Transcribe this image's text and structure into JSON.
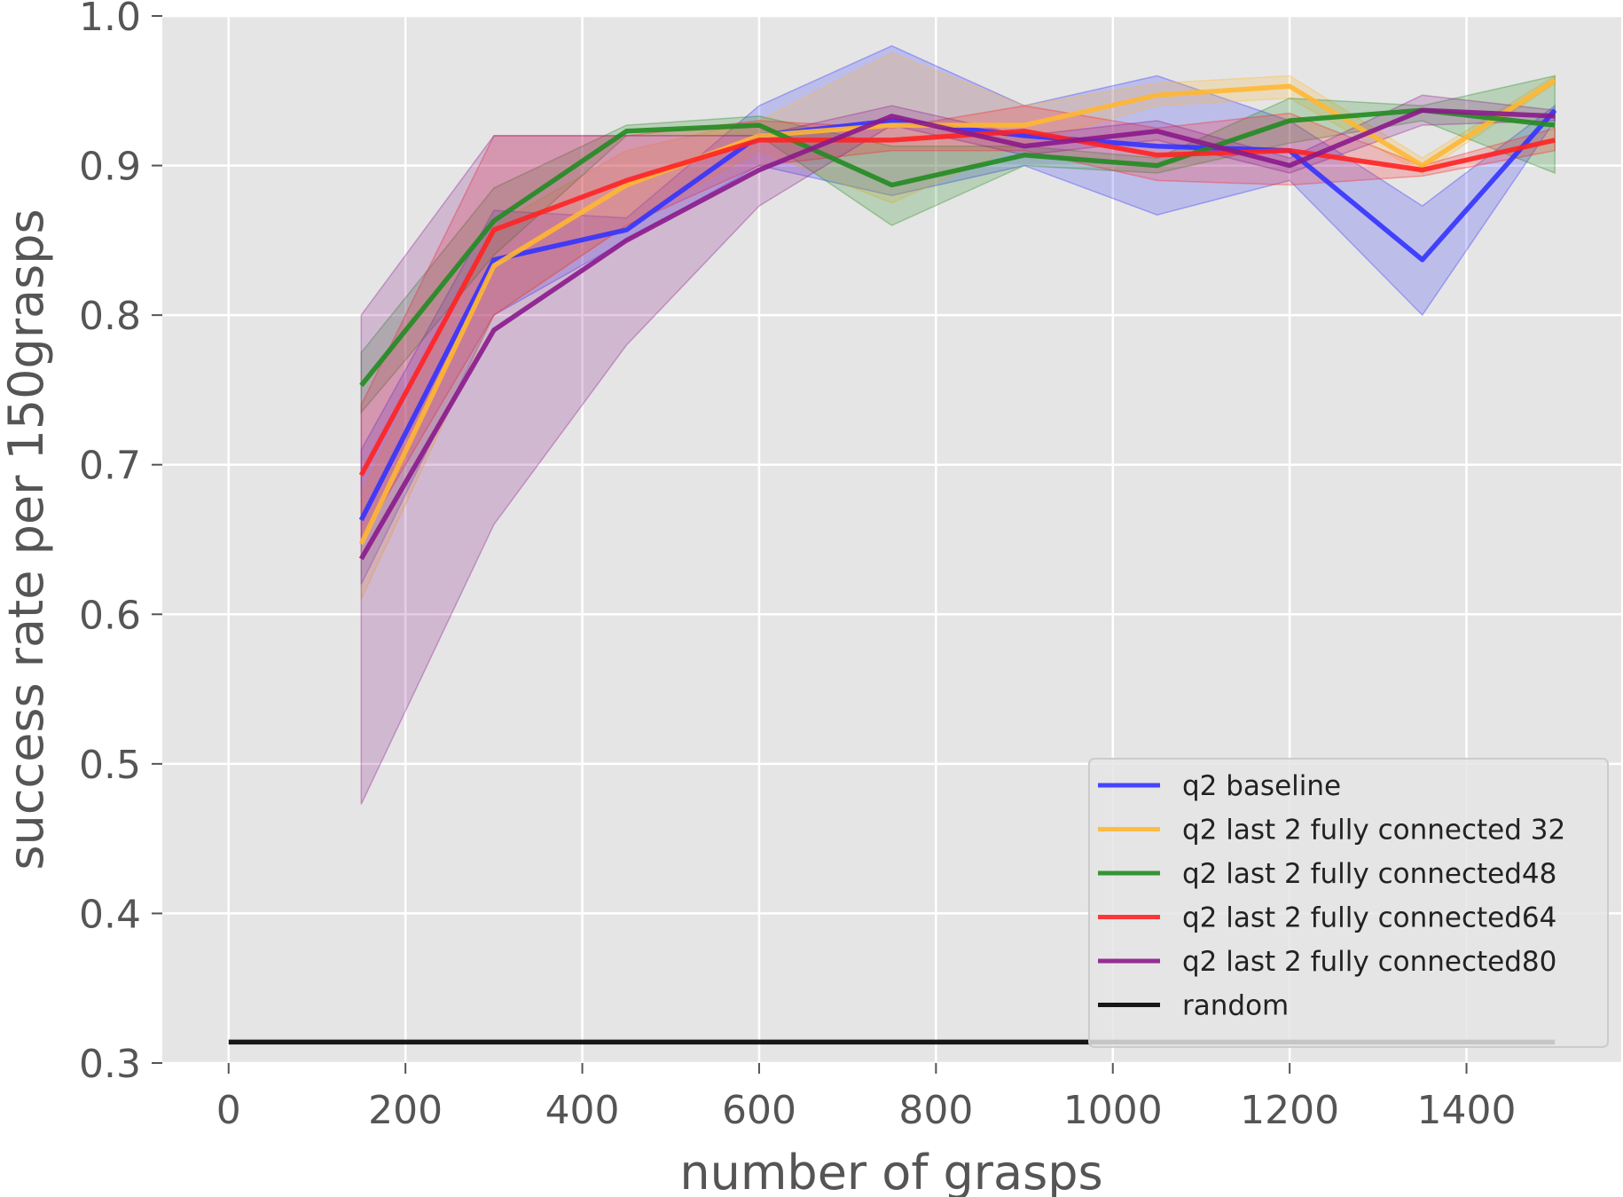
{
  "chart_data": {
    "type": "line",
    "xlabel": "number of grasps",
    "ylabel": "success rate per 150grasps",
    "xlim": [
      -75,
      1575
    ],
    "ylim": [
      0.3,
      1.0
    ],
    "xticks": [
      0,
      200,
      400,
      600,
      800,
      1000,
      1200,
      1400
    ],
    "yticks": [
      0.3,
      0.4,
      0.5,
      0.6,
      0.7,
      0.8,
      0.9,
      1.0
    ],
    "xtick_labels": [
      "0",
      "200",
      "400",
      "600",
      "800",
      "1000",
      "1200",
      "1400"
    ],
    "ytick_labels": [
      "0.3",
      "0.4",
      "0.5",
      "0.6",
      "0.7",
      "0.8",
      "0.9",
      "1.0"
    ],
    "grid": true,
    "legend_position": "lower-right",
    "x": [
      150,
      300,
      450,
      600,
      750,
      900,
      1050,
      1200,
      1350,
      1500
    ],
    "series": [
      {
        "name": "q2 baseline",
        "color": "#3333ff",
        "values": [
          0.663,
          0.837,
          0.857,
          0.92,
          0.93,
          0.92,
          0.913,
          0.91,
          0.837,
          0.937
        ],
        "lower": [
          0.62,
          0.8,
          0.85,
          0.9,
          0.88,
          0.9,
          0.867,
          0.89,
          0.8,
          0.93
        ],
        "upper": [
          0.71,
          0.87,
          0.865,
          0.94,
          0.98,
          0.94,
          0.96,
          0.93,
          0.873,
          0.94
        ]
      },
      {
        "name": "q2 last 2 fully connected 32",
        "color": "#ffb732",
        "values": [
          0.647,
          0.833,
          0.887,
          0.92,
          0.927,
          0.927,
          0.947,
          0.953,
          0.9,
          0.957
        ],
        "lower": [
          0.61,
          0.8,
          0.86,
          0.91,
          0.875,
          0.915,
          0.94,
          0.945,
          0.895,
          0.955
        ],
        "upper": [
          0.68,
          0.86,
          0.91,
          0.93,
          0.975,
          0.94,
          0.955,
          0.96,
          0.905,
          0.96
        ]
      },
      {
        "name": "q2 last 2 fully connected48",
        "color": "#228b22",
        "values": [
          0.753,
          0.863,
          0.923,
          0.927,
          0.887,
          0.907,
          0.9,
          0.93,
          0.937,
          0.927
        ],
        "lower": [
          0.735,
          0.84,
          0.92,
          0.92,
          0.86,
          0.9,
          0.895,
          0.915,
          0.93,
          0.895
        ],
        "upper": [
          0.775,
          0.885,
          0.927,
          0.933,
          0.913,
          0.913,
          0.905,
          0.945,
          0.94,
          0.96
        ]
      },
      {
        "name": "q2 last 2 fully connected64",
        "color": "#ff2222",
        "values": [
          0.693,
          0.857,
          0.89,
          0.917,
          0.917,
          0.923,
          0.907,
          0.91,
          0.897,
          0.917
        ],
        "lower": [
          0.65,
          0.8,
          0.86,
          0.9,
          0.91,
          0.91,
          0.89,
          0.887,
          0.893,
          0.91
        ],
        "upper": [
          0.74,
          0.92,
          0.92,
          0.93,
          0.925,
          0.94,
          0.925,
          0.935,
          0.9,
          0.925
        ]
      },
      {
        "name": "q2 last 2 fully connected80",
        "color": "#8b1a8b",
        "values": [
          0.637,
          0.79,
          0.85,
          0.897,
          0.933,
          0.913,
          0.923,
          0.9,
          0.937,
          0.933
        ],
        "lower": [
          0.473,
          0.66,
          0.78,
          0.873,
          0.927,
          0.907,
          0.917,
          0.895,
          0.927,
          0.93
        ],
        "upper": [
          0.8,
          0.92,
          0.92,
          0.92,
          0.94,
          0.92,
          0.93,
          0.905,
          0.947,
          0.937
        ]
      },
      {
        "name": "random",
        "color": "#000000",
        "x": [
          0,
          1500
        ],
        "values": [
          0.314,
          0.314
        ]
      }
    ]
  }
}
